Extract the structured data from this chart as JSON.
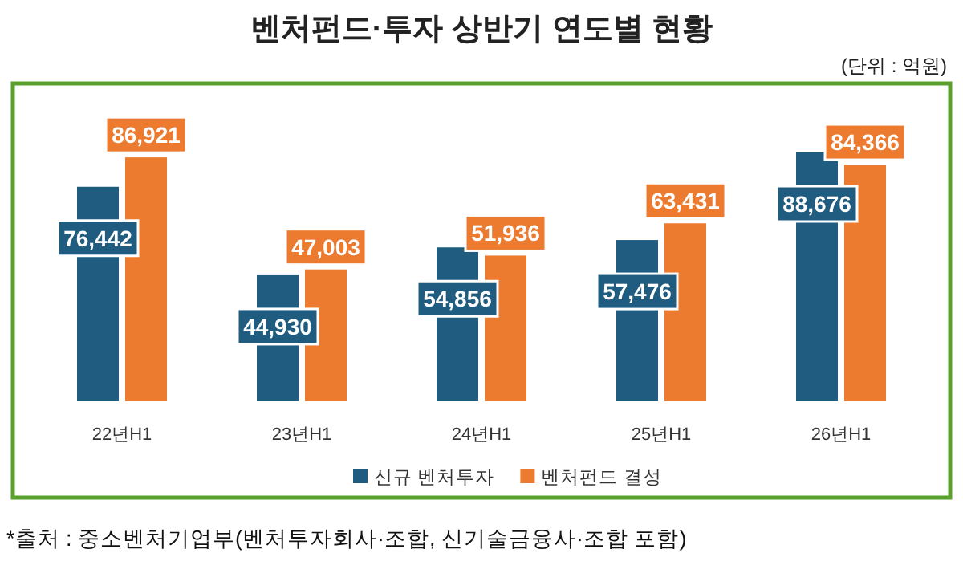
{
  "chart_data": {
    "type": "bar",
    "title": "벤처펀드·투자 상반기 연도별 현황",
    "categories": [
      "22년H1",
      "23년H1",
      "24년H1",
      "25년H1",
      "26년H1"
    ],
    "series": [
      {
        "name": "신규 벤처투자",
        "color": "#1f5c7f",
        "values": [
          76442,
          44930,
          54856,
          57476,
          88676
        ],
        "value_labels": [
          "76,442",
          "44,930",
          "54,856",
          "57,476",
          "88,676"
        ]
      },
      {
        "name": "벤처펀드 결성",
        "color": "#ec7b30",
        "values": [
          86921,
          47003,
          51936,
          63431,
          84366
        ],
        "value_labels": [
          "86,921",
          "47,003",
          "51,936",
          "63,431",
          "84,366"
        ]
      }
    ],
    "legend": "bottom",
    "annotations": [
      "(단위 : 억원)",
      "*출처 : 중소벤처기업부(벤처투자회사·조합, 신기술금융사·조합 포함)"
    ]
  }
}
